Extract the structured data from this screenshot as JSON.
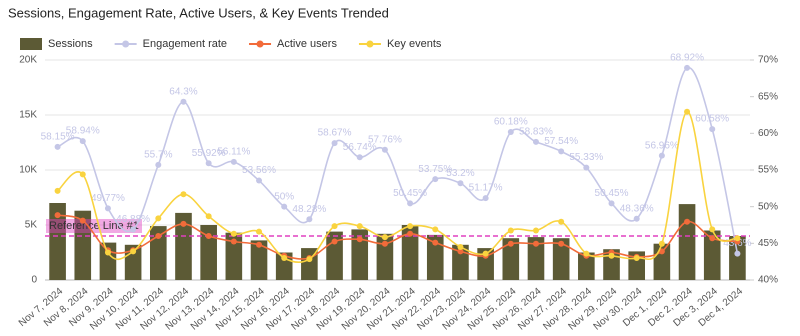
{
  "chart_data": {
    "type": "combo",
    "title": "Sessions, Engagement Rate, Active Users, & Key Events Trended",
    "categories": [
      "Nov 7, 2024",
      "Nov 8, 2024",
      "Nov 9, 2024",
      "Nov 10, 2024",
      "Nov 11, 2024",
      "Nov 12, 2024",
      "Nov 13, 2024",
      "Nov 14, 2024",
      "Nov 15, 2024",
      "Nov 16, 2024",
      "Nov 17, 2024",
      "Nov 18, 2024",
      "Nov 19, 2024",
      "Nov 20, 2024",
      "Nov 21, 2024",
      "Nov 22, 2024",
      "Nov 23, 2024",
      "Nov 24, 2024",
      "Nov 25, 2024",
      "Nov 26, 2024",
      "Nov 27, 2024",
      "Nov 28, 2024",
      "Nov 29, 2024",
      "Nov 30, 2024",
      "Dec 1, 2024",
      "Dec 2, 2024",
      "Dec 3, 2024",
      "Dec 4, 2024"
    ],
    "series": [
      {
        "name": "Sessions",
        "type": "bar",
        "color": "#5c5a35",
        "values": [
          7000,
          6300,
          3400,
          3200,
          4900,
          6100,
          5000,
          4300,
          3600,
          2500,
          2900,
          4400,
          4600,
          4200,
          5000,
          4100,
          3200,
          2900,
          3800,
          3900,
          3800,
          2500,
          2800,
          2600,
          3300,
          6900,
          4500,
          4000
        ]
      },
      {
        "name": "Engagement rate",
        "type": "line",
        "axis": "y2",
        "color": "#c4c6e6",
        "values": [
          58.15,
          58.94,
          49.77,
          46.88,
          55.7,
          64.3,
          55.92,
          56.11,
          53.56,
          50,
          48.28,
          58.67,
          56.74,
          57.76,
          50.45,
          53.75,
          53.2,
          51.17,
          60.18,
          58.83,
          57.54,
          55.33,
          50.45,
          48.36,
          56.96,
          68.92,
          60.58,
          43.6
        ],
        "value_labels": [
          "58.15%",
          "58.94%",
          "49.77%",
          "46.88%",
          "55.7%",
          "64.3%",
          "55.92%",
          "56.11%",
          "53.56%",
          "50%",
          "48.28%",
          "58.67%",
          "56.74%",
          "57.76%",
          "50.45%",
          "53.75%",
          "53.2%",
          "51.17%",
          "60.18%",
          "58.83%",
          "57.54%",
          "55.33%",
          "50.45%",
          "48.36%",
          "56.96%",
          "68.92%",
          "60.58%",
          "43.6%"
        ]
      },
      {
        "name": "Active users",
        "type": "line",
        "color": "#f26b3a",
        "values": [
          5900,
          5400,
          2700,
          2700,
          4000,
          5100,
          4000,
          3500,
          3200,
          2200,
          2000,
          3500,
          3700,
          3300,
          4200,
          3400,
          2600,
          2200,
          3300,
          3300,
          3300,
          2200,
          2500,
          2100,
          2600,
          5300,
          3800,
          3500
        ]
      },
      {
        "name": "Key events",
        "type": "line",
        "color": "#f9d33f",
        "values": [
          8100,
          9600,
          2500,
          2600,
          5600,
          7800,
          5800,
          4200,
          4400,
          2000,
          1900,
          4900,
          4900,
          3900,
          4900,
          4600,
          3000,
          2400,
          4500,
          4500,
          5300,
          2400,
          2200,
          2000,
          3300,
          15300,
          4600,
          3800
        ]
      }
    ],
    "ylim": [
      0,
      20000
    ],
    "yticks": [
      0,
      {
        "value": 5000,
        "label": "5K"
      },
      {
        "value": 10000,
        "label": "10K"
      },
      {
        "value": 15000,
        "label": "15K"
      },
      {
        "value": 20000,
        "label": "20K"
      }
    ],
    "y2lim": [
      40,
      70
    ],
    "y2ticks": [
      {
        "value": 40,
        "label": "40%"
      },
      {
        "value": 45,
        "label": "45%"
      },
      {
        "value": 50,
        "label": "50%"
      },
      {
        "value": 55,
        "label": "55%"
      },
      {
        "value": 60,
        "label": "60%"
      },
      {
        "value": 65,
        "label": "65%"
      },
      {
        "value": 70,
        "label": "70%"
      }
    ],
    "grid": true,
    "legend": "top",
    "reference_line": {
      "value": 4000,
      "label": "Reference Line #1",
      "color": "#e040c0"
    }
  }
}
